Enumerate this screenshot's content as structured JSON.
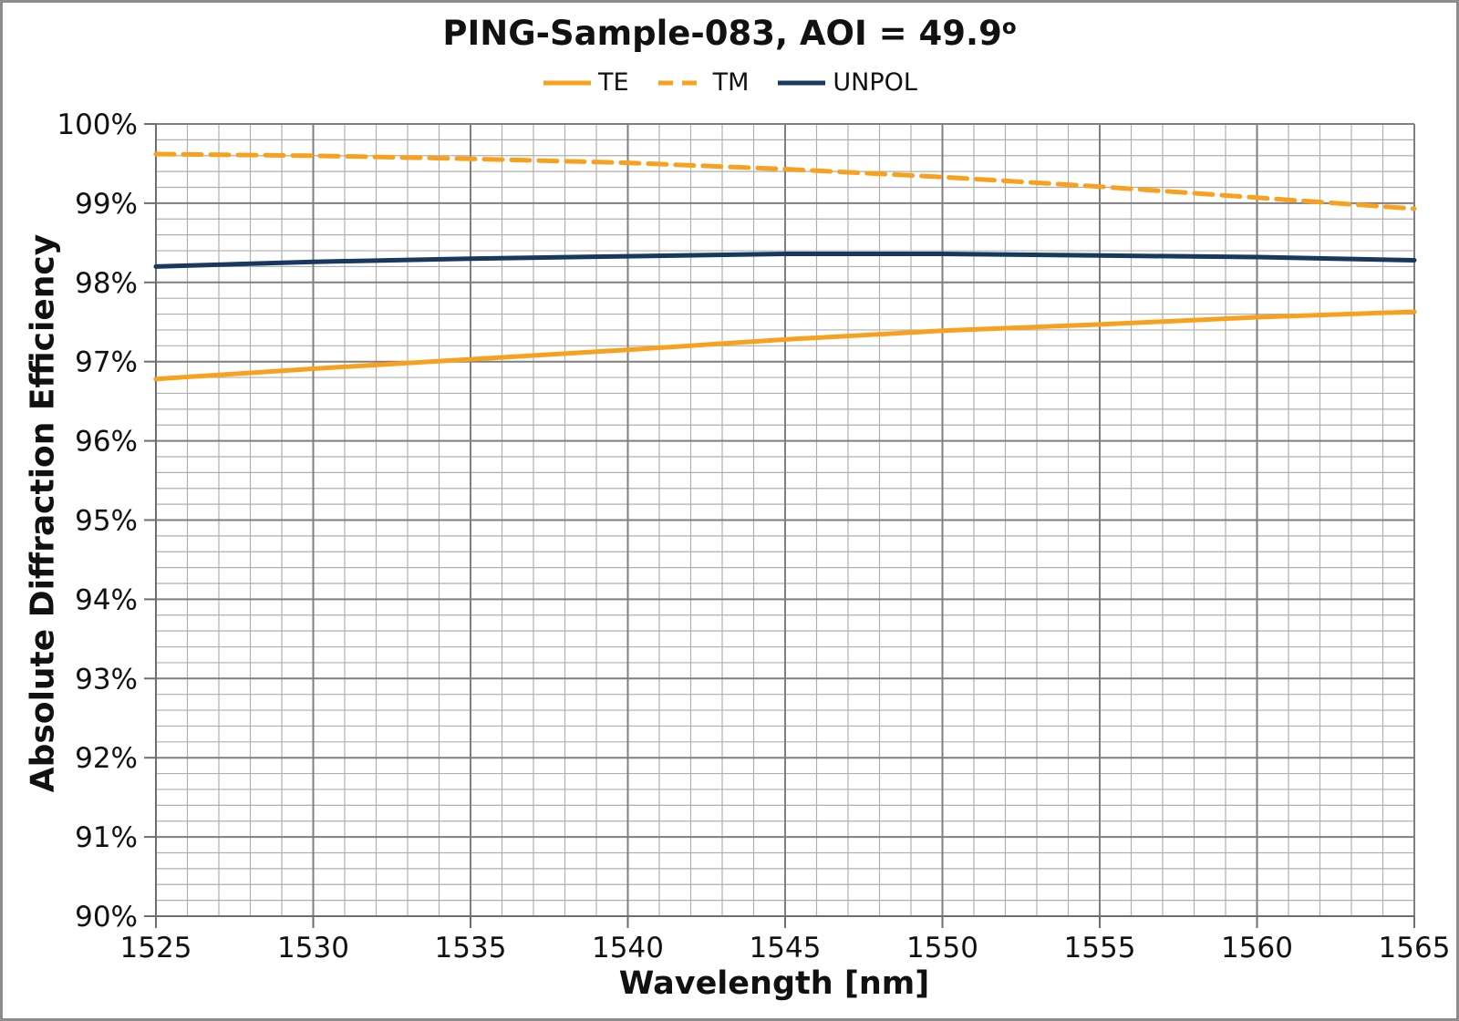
{
  "title": {
    "text": "PING-Sample-083, AOI = 49.9",
    "degree_symbol": "o"
  },
  "legend": {
    "position": "top",
    "items": [
      {
        "label": "TE"
      },
      {
        "label": "TM"
      },
      {
        "label": "UNPOL"
      }
    ]
  },
  "chart_data": {
    "type": "line",
    "title": "PING-Sample-083, AOI = 49.9°",
    "xlabel": "Wavelength [nm]",
    "ylabel": "Absolute Diffraction Efficiency",
    "xlim": [
      1525,
      1565
    ],
    "ylim": [
      90,
      100
    ],
    "x_tick_values": [
      1525,
      1530,
      1535,
      1540,
      1545,
      1550,
      1555,
      1560,
      1565
    ],
    "x_tick_labels": [
      "1525",
      "1530",
      "1535",
      "1540",
      "1545",
      "1550",
      "1555",
      "1560",
      "1565"
    ],
    "y_tick_values": [
      100,
      99,
      98,
      97,
      96,
      95,
      94,
      93,
      92,
      91,
      90
    ],
    "y_tick_labels": [
      "100%",
      "99%",
      "98%",
      "97%",
      "96%",
      "95%",
      "94%",
      "93%",
      "92%",
      "91%",
      "90%"
    ],
    "x_minor_step": 1,
    "y_minor_step": 0.2,
    "grid": "major+minor",
    "legend_position": "top-center",
    "x": [
      1525,
      1530,
      1535,
      1540,
      1545,
      1550,
      1555,
      1560,
      1565
    ],
    "series": [
      {
        "name": "TE",
        "color": "#F7A11E",
        "dash": "solid",
        "values": [
          96.78,
          96.91,
          97.03,
          97.15,
          97.28,
          97.39,
          97.47,
          97.56,
          97.63
        ]
      },
      {
        "name": "TM",
        "color": "#F7A11E",
        "dash": "dashed",
        "values": [
          99.62,
          99.6,
          99.56,
          99.51,
          99.43,
          99.33,
          99.21,
          99.07,
          98.93
        ]
      },
      {
        "name": "UNPOL",
        "color": "#17395F",
        "dash": "solid",
        "values": [
          98.2,
          98.26,
          98.3,
          98.33,
          98.36,
          98.36,
          98.34,
          98.32,
          98.28
        ]
      }
    ],
    "style": {
      "minor_grid_color": "#AFAFAF",
      "major_grid_color": "#7F7F7F",
      "axis_color": "#6E6E6E",
      "text_color": "#111111",
      "line_width": 5
    }
  }
}
